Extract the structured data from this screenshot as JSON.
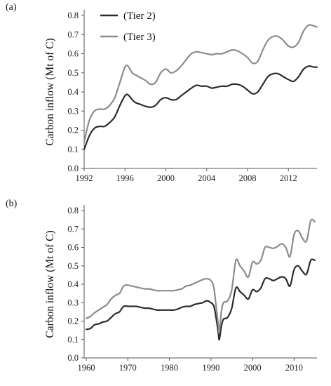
{
  "chart_data": [
    {
      "type": "line",
      "panel_label": "(a)",
      "ylabel": "Carbon inflow (Mt of C)",
      "xlabel": "",
      "xlim": [
        1992,
        2014.8
      ],
      "ylim": [
        0.0,
        0.8
      ],
      "x_ticks": [
        1992,
        1996,
        2000,
        2004,
        2008,
        2012
      ],
      "y_ticks": [
        "0.0",
        "0.1",
        "0.2",
        "0.3",
        "0.4",
        "0.5",
        "0.6",
        "0.7",
        "0.8"
      ],
      "grid": false,
      "legend": "top-left",
      "series": [
        {
          "name": "(Tier 2)",
          "color": "#2b2b2b",
          "x": [
            1992,
            1992.5,
            1993,
            1993.5,
            1994,
            1994.5,
            1995,
            1995.5,
            1996,
            1996.3,
            1996.7,
            1997,
            1997.5,
            1998,
            1998.5,
            1999,
            1999.5,
            2000,
            2000.5,
            2001,
            2001.5,
            2002,
            2002.5,
            2003,
            2003.5,
            2004,
            2004.5,
            2005,
            2005.5,
            2006,
            2006.5,
            2007,
            2007.5,
            2008,
            2008.5,
            2009,
            2009.5,
            2010,
            2010.5,
            2011,
            2011.5,
            2012,
            2012.5,
            2013,
            2013.5,
            2014,
            2014.5,
            2014.8
          ],
          "values": [
            0.1,
            0.17,
            0.21,
            0.22,
            0.22,
            0.24,
            0.27,
            0.33,
            0.38,
            0.385,
            0.36,
            0.345,
            0.335,
            0.325,
            0.32,
            0.33,
            0.36,
            0.37,
            0.36,
            0.36,
            0.38,
            0.4,
            0.42,
            0.435,
            0.43,
            0.43,
            0.42,
            0.425,
            0.43,
            0.43,
            0.44,
            0.44,
            0.43,
            0.41,
            0.39,
            0.4,
            0.44,
            0.48,
            0.495,
            0.495,
            0.48,
            0.465,
            0.455,
            0.48,
            0.52,
            0.535,
            0.53,
            0.53
          ]
        },
        {
          "name": "(Tier 3)",
          "color": "#8c8c8c",
          "x": [
            1992,
            1992.5,
            1993,
            1993.5,
            1994,
            1994.5,
            1995,
            1995.5,
            1996,
            1996.3,
            1996.7,
            1997,
            1997.5,
            1998,
            1998.5,
            1999,
            1999.5,
            2000,
            2000.5,
            2001,
            2001.5,
            2002,
            2002.5,
            2003,
            2003.5,
            2004,
            2004.5,
            2005,
            2005.5,
            2006,
            2006.5,
            2007,
            2007.5,
            2008,
            2008.5,
            2009,
            2009.5,
            2010,
            2010.5,
            2011,
            2011.5,
            2012,
            2012.5,
            2013,
            2013.5,
            2014,
            2014.5,
            2014.8
          ],
          "values": [
            0.14,
            0.25,
            0.3,
            0.31,
            0.31,
            0.33,
            0.37,
            0.45,
            0.53,
            0.535,
            0.5,
            0.49,
            0.475,
            0.46,
            0.44,
            0.45,
            0.5,
            0.52,
            0.5,
            0.51,
            0.535,
            0.57,
            0.6,
            0.61,
            0.605,
            0.6,
            0.595,
            0.6,
            0.6,
            0.61,
            0.62,
            0.615,
            0.6,
            0.58,
            0.55,
            0.56,
            0.62,
            0.67,
            0.69,
            0.69,
            0.67,
            0.64,
            0.635,
            0.66,
            0.72,
            0.75,
            0.745,
            0.74
          ]
        }
      ]
    },
    {
      "type": "line",
      "panel_label": "(b)",
      "ylabel": "Carbon inflow (Mt of C)",
      "xlabel": "",
      "xlim": [
        1959.5,
        2015.5
      ],
      "ylim": [
        0.0,
        0.8
      ],
      "x_ticks": [
        1960,
        1970,
        1980,
        1990,
        2000,
        2010
      ],
      "y_ticks": [
        "0.0",
        "0.1",
        "0.2",
        "0.3",
        "0.4",
        "0.5",
        "0.6",
        "0.7",
        "0.8"
      ],
      "grid": false,
      "legend": "none",
      "series": [
        {
          "name": "Tier 2",
          "color": "#2b2b2b",
          "x": [
            1960,
            1961,
            1962,
            1963,
            1964,
            1965,
            1966,
            1967,
            1968,
            1969,
            1970,
            1971,
            1972,
            1973,
            1974,
            1975,
            1976,
            1977,
            1978,
            1979,
            1980,
            1981,
            1982,
            1983,
            1984,
            1985,
            1986,
            1987,
            1988,
            1989,
            1990,
            1990.7,
            1991.3,
            1991.8,
            1992,
            1992.5,
            1993,
            1994,
            1995,
            1996,
            1997,
            1998,
            1999,
            2000,
            2001,
            2002,
            2003,
            2004,
            2005,
            2006,
            2007,
            2008,
            2009,
            2010,
            2011,
            2012,
            2013,
            2014,
            2015
          ],
          "values": [
            0.155,
            0.16,
            0.18,
            0.185,
            0.195,
            0.2,
            0.22,
            0.24,
            0.25,
            0.28,
            0.28,
            0.28,
            0.28,
            0.275,
            0.27,
            0.27,
            0.265,
            0.26,
            0.26,
            0.26,
            0.26,
            0.26,
            0.265,
            0.275,
            0.28,
            0.28,
            0.29,
            0.295,
            0.3,
            0.31,
            0.3,
            0.28,
            0.21,
            0.13,
            0.1,
            0.17,
            0.21,
            0.22,
            0.27,
            0.38,
            0.36,
            0.34,
            0.32,
            0.37,
            0.36,
            0.38,
            0.43,
            0.43,
            0.42,
            0.43,
            0.44,
            0.43,
            0.39,
            0.48,
            0.5,
            0.47,
            0.455,
            0.53,
            0.53
          ]
        },
        {
          "name": "Tier 3",
          "color": "#8c8c8c",
          "x": [
            1960,
            1961,
            1962,
            1963,
            1964,
            1965,
            1966,
            1967,
            1968,
            1969,
            1970,
            1971,
            1972,
            1973,
            1974,
            1975,
            1976,
            1977,
            1978,
            1979,
            1980,
            1981,
            1982,
            1983,
            1984,
            1985,
            1986,
            1987,
            1988,
            1989,
            1990,
            1990.7,
            1991.3,
            1991.8,
            1992,
            1992.5,
            1993,
            1994,
            1995,
            1996,
            1997,
            1998,
            1999,
            2000,
            2001,
            2002,
            2003,
            2004,
            2005,
            2006,
            2007,
            2008,
            2009,
            2010,
            2011,
            2012,
            2013,
            2014,
            2015
          ],
          "values": [
            0.215,
            0.225,
            0.245,
            0.26,
            0.275,
            0.29,
            0.32,
            0.34,
            0.35,
            0.39,
            0.395,
            0.39,
            0.385,
            0.38,
            0.375,
            0.375,
            0.37,
            0.365,
            0.365,
            0.365,
            0.365,
            0.365,
            0.37,
            0.375,
            0.39,
            0.395,
            0.405,
            0.415,
            0.425,
            0.43,
            0.42,
            0.38,
            0.27,
            0.17,
            0.14,
            0.25,
            0.3,
            0.31,
            0.37,
            0.53,
            0.5,
            0.47,
            0.44,
            0.52,
            0.51,
            0.53,
            0.6,
            0.6,
            0.595,
            0.605,
            0.62,
            0.6,
            0.55,
            0.67,
            0.69,
            0.65,
            0.635,
            0.745,
            0.74
          ]
        }
      ]
    }
  ]
}
